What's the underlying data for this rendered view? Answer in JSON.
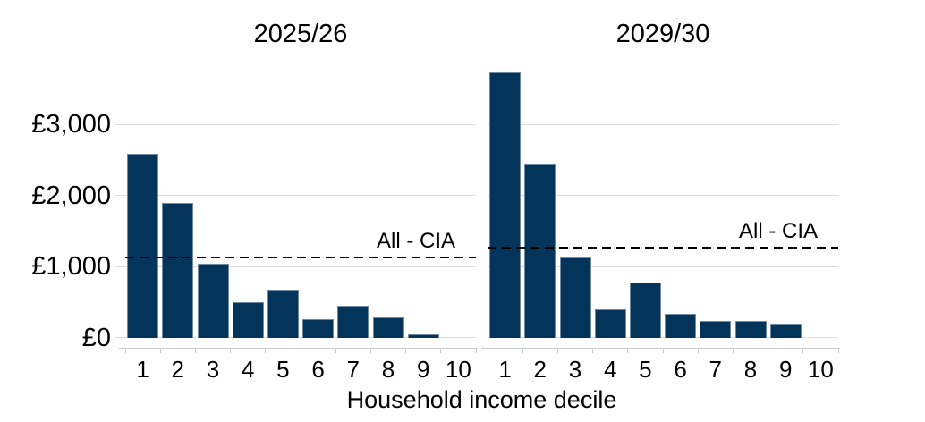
{
  "figure": {
    "background": "#ffffff"
  },
  "axes": {
    "shared_xlabel": "Household income decile",
    "ylim": [
      0,
      3750
    ],
    "yticks": [
      {
        "value": 0,
        "label": "£0"
      },
      {
        "value": 1000,
        "label": "£1,000"
      },
      {
        "value": 2000,
        "label": "£2,000"
      },
      {
        "value": 3000,
        "label": "£3,000"
      }
    ],
    "grid": true,
    "legend": "none"
  },
  "chart_data": [
    {
      "type": "bar",
      "title": "2025/26",
      "categories": [
        "1",
        "2",
        "3",
        "4",
        "5",
        "6",
        "7",
        "8",
        "9",
        "10"
      ],
      "values": [
        2590,
        1905,
        1050,
        505,
        685,
        265,
        455,
        290,
        45,
        0
      ],
      "reference_line": {
        "label": "All - CIA",
        "value": 1120,
        "style": "dashed"
      }
    },
    {
      "type": "bar",
      "title": "2029/30",
      "categories": [
        "1",
        "2",
        "3",
        "4",
        "5",
        "6",
        "7",
        "8",
        "9",
        "10"
      ],
      "values": [
        3730,
        2450,
        1130,
        400,
        775,
        335,
        245,
        245,
        195,
        0
      ],
      "reference_line": {
        "label": "All - CIA",
        "value": 1265,
        "style": "dashed"
      }
    }
  ],
  "colors": {
    "bar_fill": "#043459",
    "bar_border": "#6e8ba3",
    "grid": "#dcdcdc",
    "axis": "#c6cacd",
    "reference_line": "#000000",
    "text": "#000000",
    "background": "#ffffff"
  }
}
